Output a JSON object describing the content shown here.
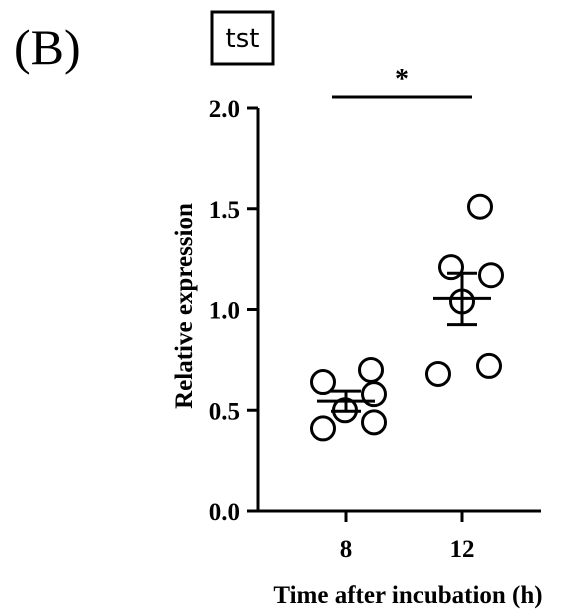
{
  "panel_label": "(B)",
  "gene_label": "tst",
  "chart_data": {
    "type": "scatter",
    "subtitle": "tst",
    "xlabel": "Time after incubation (h)",
    "ylabel": "Relative expression",
    "ylim": [
      0,
      2.0
    ],
    "yticks": [
      "0.0",
      "0.5",
      "1.0",
      "1.5",
      "2.0"
    ],
    "categories": [
      "8",
      "12"
    ],
    "groups": [
      {
        "category": "8",
        "points": [
          0.64,
          0.7,
          0.58,
          0.5,
          0.41,
          0.44
        ],
        "mean": 0.545,
        "sem_upper": 0.595,
        "sem_lower": 0.495
      },
      {
        "category": "12",
        "points": [
          1.51,
          1.21,
          1.17,
          1.04,
          0.68,
          0.72
        ],
        "mean": 1.055,
        "sem_upper": 1.18,
        "sem_lower": 0.925
      }
    ],
    "significance": {
      "label": "*",
      "between": [
        "8",
        "12"
      ]
    },
    "grid": false,
    "legend": "none"
  }
}
